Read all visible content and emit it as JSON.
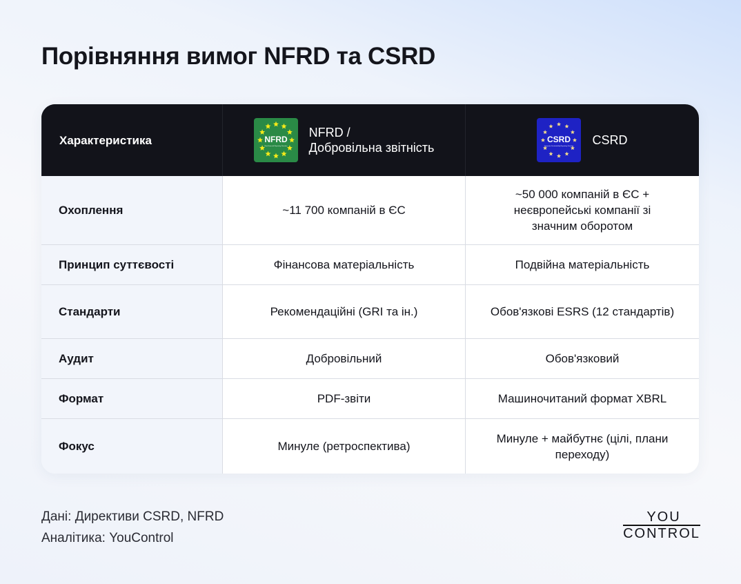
{
  "title": "Порівняння вимог NFRD та CSRD",
  "table": {
    "headers": [
      "Характеристика",
      "NFRD /\nДобровільна звітність",
      "CSRD"
    ],
    "header_parts": {
      "nfrd_line1": "NFRD /",
      "nfrd_line2": "Добровільна звітність"
    },
    "logos": {
      "nfrd": {
        "text": "NFRD",
        "sub": "Non-Financial Reporting Directive",
        "color": "#2a8a46",
        "star_color": "#f5ea19"
      },
      "csrd": {
        "text": "CSRD",
        "sub": "Corporate Sustainability Reporting Directive",
        "color": "#1e22c4",
        "star_color": "#f1d98a"
      }
    },
    "rows": [
      {
        "label": "Охоплення",
        "nfrd": "~11 700 компаній в ЄС",
        "csrd": "~50 000 компаній в ЄС + неєвропейські компанії зі значним оборотом"
      },
      {
        "label": "Принцип суттєвості",
        "nfrd": "Фінансова матеріальність",
        "csrd": "Подвійна матеріальність"
      },
      {
        "label": "Стандарти",
        "nfrd": "Рекомендаційні (GRI та ін.)",
        "csrd": "Обов'язкові ESRS (12 стандартів)"
      },
      {
        "label": "Аудит",
        "nfrd": "Добровільний",
        "csrd": "Обов'язковий"
      },
      {
        "label": "Формат",
        "nfrd": "PDF-звіти",
        "csrd": "Машиночитаний формат XBRL"
      },
      {
        "label": "Фокус",
        "nfrd": "Минуле (ретроспектива)",
        "csrd": "Минуле + майбутнє (цілі, плани переходу)"
      }
    ]
  },
  "footer": {
    "source": "Дані: Директиви CSRD, NFRD",
    "analytics": "Аналітика: YouControl"
  },
  "brand": {
    "line1": "YOU",
    "line2": "CONTROL"
  }
}
